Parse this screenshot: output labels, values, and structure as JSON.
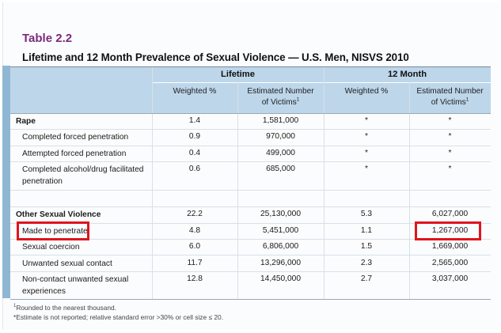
{
  "table": {
    "number": "Table 2.2",
    "title": "Lifetime and 12 Month Prevalence of Sexual Violence — U.S. Men, NISVS 2010"
  },
  "headers": {
    "groups": [
      "Lifetime",
      "12 Month"
    ],
    "weighted": "Weighted %",
    "estimated_line1": "Estimated Number",
    "estimated_line2": "of Victims",
    "estimated_sup": "1"
  },
  "rows": [
    {
      "label": "Rape",
      "bold": true,
      "lt_pct": "1.4",
      "lt_num": "1,581,000",
      "m_pct": "*",
      "m_num": "*"
    },
    {
      "label": "Completed forced penetration",
      "lt_pct": "0.9",
      "lt_num": "970,000",
      "m_pct": "*",
      "m_num": "*"
    },
    {
      "label": "Attempted forced penetration",
      "lt_pct": "0.4",
      "lt_num": "499,000",
      "m_pct": "*",
      "m_num": "*"
    },
    {
      "label1": "Completed alcohol/drug facilitated",
      "label2": "penetration",
      "lt_pct": "0.6",
      "lt_num": "685,000",
      "m_pct": "*",
      "m_num": "*"
    },
    {
      "label": "Other Sexual Violence",
      "bold": true,
      "lt_pct": "22.2",
      "lt_num": "25,130,000",
      "m_pct": "5.3",
      "m_num": "6,027,000"
    },
    {
      "label": "Made to penetrate",
      "lt_pct": "4.8",
      "lt_num": "5,451,000",
      "m_pct": "1.1",
      "m_num": "1,267,000"
    },
    {
      "label": "Sexual coercion",
      "lt_pct": "6.0",
      "lt_num": "6,806,000",
      "m_pct": "1.5",
      "m_num": "1,669,000"
    },
    {
      "label": "Unwanted sexual contact",
      "lt_pct": "11.7",
      "lt_num": "13,296,000",
      "m_pct": "2.3",
      "m_num": "2,565,000"
    },
    {
      "label1": "Non-contact unwanted sexual",
      "label2": "experiences",
      "lt_pct": "12.8",
      "lt_num": "14,450,000",
      "m_pct": "2.7",
      "m_num": "3,037,000"
    }
  ],
  "notes": {
    "note1_sup": "1",
    "note1": "Rounded to the nearest thousand.",
    "note2": "*Estimate is not reported; relative standard error >30% or cell size ≤ 20."
  },
  "colors": {
    "title_purple": "#7b2a7d",
    "header_blue": "#bdd6ea",
    "sidebar_blue": "#8fb7d4",
    "highlight_red": "#e0141e"
  }
}
